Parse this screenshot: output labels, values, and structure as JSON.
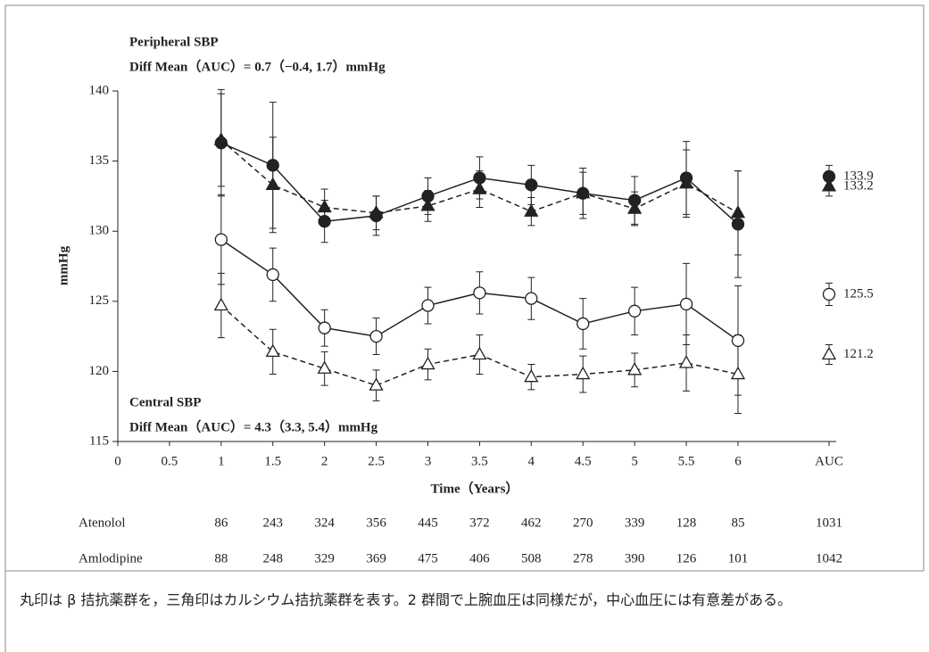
{
  "chart_data": {
    "type": "line",
    "annotations": [
      "Peripheral SBP",
      "Diff Mean（AUC）= 0.7（−0.4, 1.7）mmHg",
      "Central SBP",
      "Diff Mean（AUC）= 4.3（3.3, 5.4）mmHg"
    ],
    "y_label": "mmHg",
    "x_label": "Time（Years）",
    "auc_label": "AUC",
    "x": [
      1,
      1.5,
      2,
      2.5,
      3,
      3.5,
      4,
      4.5,
      5,
      5.5,
      6
    ],
    "series": [
      {
        "color": "#222",
        "marker": "circle",
        "filled": true,
        "dash": false,
        "values": [
          136.3,
          134.7,
          130.7,
          131.1,
          132.5,
          133.8,
          133.3,
          132.7,
          132.2,
          133.8,
          130.5
        ],
        "errors": [
          3.8,
          4.5,
          1.5,
          1.4,
          1.3,
          1.5,
          1.4,
          1.8,
          1.7,
          2.6,
          3.8
        ],
        "auc": 133.9,
        "auc_error": 0.8
      },
      {
        "color": "#222",
        "marker": "triangle",
        "filled": true,
        "dash": true,
        "values": [
          136.5,
          133.3,
          131.7,
          131.3,
          131.8,
          133.0,
          131.4,
          132.7,
          131.6,
          133.4,
          131.3
        ],
        "errors": [
          3.3,
          3.4,
          1.3,
          1.2,
          1.1,
          1.3,
          1.0,
          1.5,
          1.2,
          2.4,
          3.0
        ],
        "auc": 133.2,
        "auc_error": 0.7
      },
      {
        "color": "#222",
        "marker": "circle",
        "filled": false,
        "dash": false,
        "values": [
          129.4,
          126.9,
          123.1,
          122.5,
          124.7,
          125.6,
          125.2,
          123.4,
          124.3,
          124.8,
          122.2
        ],
        "errors": [
          3.2,
          1.9,
          1.3,
          1.3,
          1.3,
          1.5,
          1.5,
          1.8,
          1.7,
          2.9,
          3.9
        ],
        "auc": 125.5,
        "auc_error": 0.8
      },
      {
        "color": "#222",
        "marker": "triangle",
        "filled": false,
        "dash": true,
        "values": [
          124.7,
          121.4,
          120.2,
          119.0,
          120.5,
          121.2,
          119.6,
          119.8,
          120.1,
          120.6,
          119.8
        ],
        "errors": [
          2.3,
          1.6,
          1.2,
          1.1,
          1.1,
          1.4,
          0.9,
          1.3,
          1.2,
          2.0,
          2.8
        ],
        "auc": 121.2,
        "auc_error": 0.7
      }
    ],
    "xlim": [
      0,
      6.95
    ],
    "xticks": [
      0,
      0.5,
      1,
      1.5,
      2,
      2.5,
      3,
      3.5,
      4,
      4.5,
      5,
      5.5,
      6
    ],
    "ylim": [
      115,
      140
    ],
    "yticks": [
      115,
      120,
      125,
      130,
      135,
      140
    ]
  },
  "table": {
    "rows": [
      {
        "name": "Atenolol",
        "counts": [
          86,
          243,
          324,
          356,
          445,
          372,
          462,
          270,
          339,
          128,
          85
        ],
        "auc": 1031
      },
      {
        "name": "Amlodipine",
        "counts": [
          88,
          248,
          329,
          369,
          475,
          406,
          508,
          278,
          390,
          126,
          101
        ],
        "auc": 1042
      }
    ]
  },
  "caption": "丸印は β 拮抗薬群を，三角印はカルシウム拮抗薬群を表す。2 群間で上腕血圧は同様だが，中心血圧には有意差がある。"
}
